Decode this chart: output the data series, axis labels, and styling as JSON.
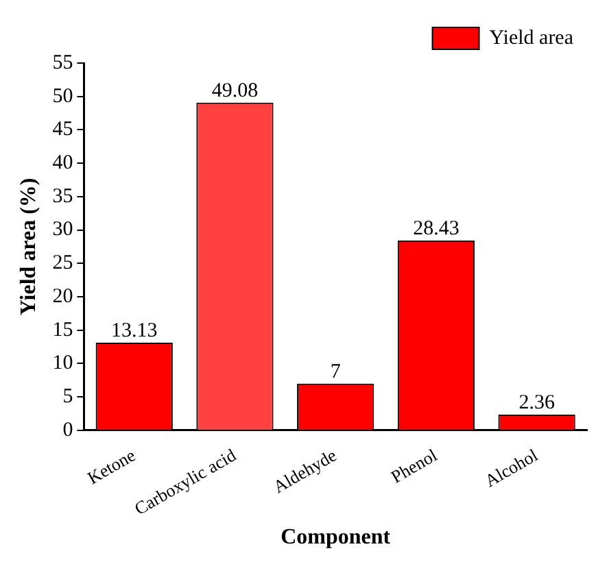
{
  "chart_data": {
    "type": "bar",
    "xlabel": "Component",
    "ylabel": "Yield area (%)",
    "categories": [
      "Ketone",
      "Carboxylic acid",
      "Aldehyde",
      "Phenol",
      "Alcohol"
    ],
    "series": [
      {
        "name": "Yield area",
        "color": "#ff0000",
        "colors": [
          "#ff0000",
          "#ff4040",
          "#ff0000",
          "#ff0000",
          "#ff0000"
        ],
        "values": [
          13.13,
          49.08,
          7,
          28.43,
          2.36
        ]
      }
    ],
    "ylim": [
      0,
      55
    ],
    "yticks": [
      0,
      5,
      10,
      15,
      20,
      25,
      30,
      35,
      40,
      45,
      50,
      55
    ],
    "data_labels": true,
    "legend": "top right",
    "grid": false
  }
}
